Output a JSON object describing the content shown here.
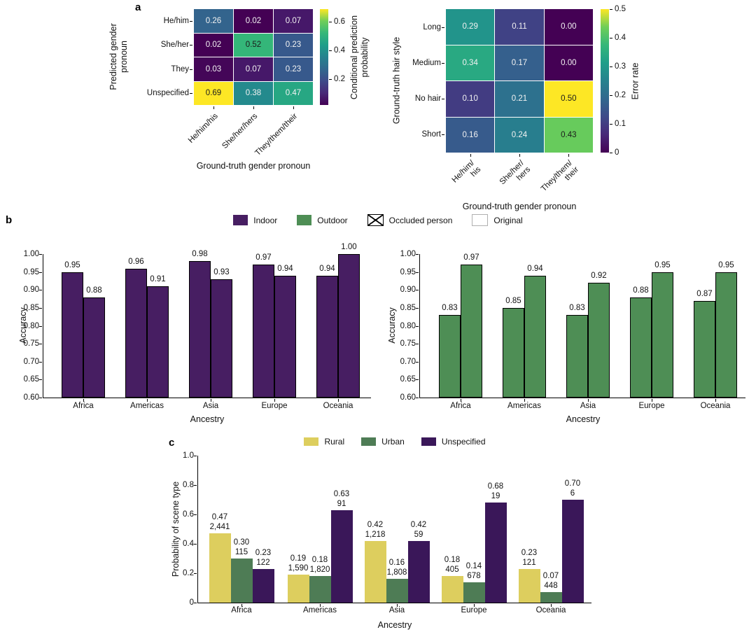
{
  "figure": {
    "panel_a_label": "a",
    "panel_b_label": "b",
    "panel_c_label": "c",
    "background": "#ffffff"
  },
  "colors": {
    "indoor": "#471e62",
    "outdoor": "#4e8e55",
    "rural": "#ddce5e",
    "urban": "#4e7c55",
    "unspecified": "#3a1759",
    "axis": "#000000"
  },
  "legend_b": {
    "items": [
      {
        "label": "Indoor",
        "style": "fill",
        "color": "#471e62"
      },
      {
        "label": "Outdoor",
        "style": "fill",
        "color": "#4e8e55"
      },
      {
        "label": "Occluded person",
        "style": "hatch",
        "color": "#ffffff"
      },
      {
        "label": "Original",
        "style": "empty",
        "color": "#ffffff"
      }
    ]
  },
  "legend_c": {
    "items": [
      {
        "label": "Rural",
        "style": "fill",
        "color": "#ddce5e"
      },
      {
        "label": "Urban",
        "style": "fill",
        "color": "#4e7c55"
      },
      {
        "label": "Unspecified",
        "style": "fill",
        "color": "#3a1759"
      }
    ]
  },
  "chart_data": [
    {
      "type": "heatmap",
      "panel": "a",
      "position": "left",
      "ylabel_lines": [
        "Predicted gender",
        "pronoun"
      ],
      "xlabel": "Ground-truth gender pronoun",
      "row_labels": [
        "He/him",
        "She/her",
        "They",
        "Unspecified"
      ],
      "col_labels": [
        [
          "He/him/his"
        ],
        [
          "She/her/hers"
        ],
        [
          "They/them/their"
        ]
      ],
      "values": [
        [
          0.26,
          0.02,
          0.07
        ],
        [
          0.02,
          0.52,
          0.23
        ],
        [
          0.03,
          0.07,
          0.23
        ],
        [
          0.69,
          0.38,
          0.47
        ]
      ],
      "vmin": 0.02,
      "vmax": 0.69,
      "colormap": "viridis",
      "colorbar": {
        "label_lines": [
          "Conditional prediction",
          "probability"
        ],
        "ticks": [
          {
            "v": 0.2,
            "label": "0.2"
          },
          {
            "v": 0.4,
            "label": "0.4"
          },
          {
            "v": 0.6,
            "label": "0.6"
          }
        ]
      }
    },
    {
      "type": "heatmap",
      "panel": "a",
      "position": "right",
      "ylabel_lines": [
        "Ground-truth hair style"
      ],
      "xlabel": "Ground-truth gender pronoun",
      "row_labels": [
        "Long",
        "Medium",
        "No hair",
        "Short"
      ],
      "col_labels": [
        [
          "He/him/",
          "his"
        ],
        [
          "She/her/",
          "hers"
        ],
        [
          "They/them/",
          "their"
        ]
      ],
      "values": [
        [
          0.29,
          0.11,
          0.0
        ],
        [
          0.34,
          0.17,
          0.0
        ],
        [
          0.1,
          0.21,
          0.5
        ],
        [
          0.16,
          0.24,
          0.43
        ]
      ],
      "vmin": 0,
      "vmax": 0.5,
      "colormap": "viridis",
      "colorbar": {
        "label_lines": [
          "Error rate"
        ],
        "ticks": [
          {
            "v": 0,
            "label": "0"
          },
          {
            "v": 0.1,
            "label": "0.1"
          },
          {
            "v": 0.2,
            "label": "0.2"
          },
          {
            "v": 0.3,
            "label": "0.3"
          },
          {
            "v": 0.4,
            "label": "0.4"
          },
          {
            "v": 0.5,
            "label": "0.5"
          }
        ]
      }
    },
    {
      "type": "bar",
      "panel": "b",
      "position": "left",
      "categories": [
        "Africa",
        "Americas",
        "Asia",
        "Europe",
        "Oceania"
      ],
      "series": [
        {
          "name": "Occluded person",
          "hatch": true,
          "values": [
            0.95,
            0.96,
            0.98,
            0.97,
            0.94
          ]
        },
        {
          "name": "Original",
          "hatch": false,
          "values": [
            0.88,
            0.91,
            0.93,
            0.94,
            1.0
          ]
        }
      ],
      "color": "#471e62",
      "condition": "Indoor",
      "ylabel": "Accuracy",
      "xlabel": "Ancestry",
      "ylim": [
        0.6,
        1.0
      ],
      "yticks": [
        {
          "v": 0.6,
          "label": "0.60"
        },
        {
          "v": 0.65,
          "label": "0.65"
        },
        {
          "v": 0.7,
          "label": "0.70"
        },
        {
          "v": 0.75,
          "label": "0.75"
        },
        {
          "v": 0.8,
          "label": "0.80"
        },
        {
          "v": 0.85,
          "label": "0.85"
        },
        {
          "v": 0.9,
          "label": "0.90"
        },
        {
          "v": 0.95,
          "label": "0.95"
        },
        {
          "v": 1.0,
          "label": "1.00"
        }
      ]
    },
    {
      "type": "bar",
      "panel": "b",
      "position": "right",
      "categories": [
        "Africa",
        "Americas",
        "Asia",
        "Europe",
        "Oceania"
      ],
      "series": [
        {
          "name": "Occluded person",
          "hatch": true,
          "values": [
            0.83,
            0.85,
            0.83,
            0.88,
            0.87
          ]
        },
        {
          "name": "Original",
          "hatch": false,
          "values": [
            0.97,
            0.94,
            0.92,
            0.95,
            0.95
          ]
        }
      ],
      "color": "#4e8e55",
      "condition": "Outdoor",
      "ylabel": "Accuracy",
      "xlabel": "Ancestry",
      "ylim": [
        0.6,
        1.0
      ],
      "yticks": [
        {
          "v": 0.6,
          "label": "0.60"
        },
        {
          "v": 0.65,
          "label": "0.65"
        },
        {
          "v": 0.7,
          "label": "0.70"
        },
        {
          "v": 0.75,
          "label": "0.75"
        },
        {
          "v": 0.8,
          "label": "0.80"
        },
        {
          "v": 0.85,
          "label": "0.85"
        },
        {
          "v": 0.9,
          "label": "0.90"
        },
        {
          "v": 0.95,
          "label": "0.95"
        },
        {
          "v": 1.0,
          "label": "1.00"
        }
      ]
    },
    {
      "type": "bar",
      "panel": "c",
      "categories": [
        "Africa",
        "Americas",
        "Asia",
        "Europe",
        "Oceania"
      ],
      "series": [
        {
          "name": "Rural",
          "color": "#ddce5e",
          "values": [
            0.47,
            0.19,
            0.42,
            0.18,
            0.23
          ],
          "counts": [
            "2,441",
            "1,590",
            "1,218",
            "405",
            "121"
          ]
        },
        {
          "name": "Urban",
          "color": "#4e7c55",
          "values": [
            0.3,
            0.18,
            0.16,
            0.14,
            0.07
          ],
          "counts": [
            "115",
            "1,820",
            "1,808",
            "678",
            "448"
          ]
        },
        {
          "name": "Unspecified",
          "color": "#3a1759",
          "values": [
            0.23,
            0.63,
            0.42,
            0.68,
            0.7
          ],
          "counts": [
            "122",
            "91",
            "59",
            "19",
            "6"
          ]
        }
      ],
      "ylabel": "Probability of scene type",
      "xlabel": "Ancestry",
      "ylim": [
        0,
        1.0
      ],
      "yticks": [
        {
          "v": 0,
          "label": "0"
        },
        {
          "v": 0.2,
          "label": "0.2"
        },
        {
          "v": 0.4,
          "label": "0.4"
        },
        {
          "v": 0.6,
          "label": "0.6"
        },
        {
          "v": 0.8,
          "label": "0.8"
        },
        {
          "v": 1.0,
          "label": "1.0"
        }
      ]
    }
  ]
}
